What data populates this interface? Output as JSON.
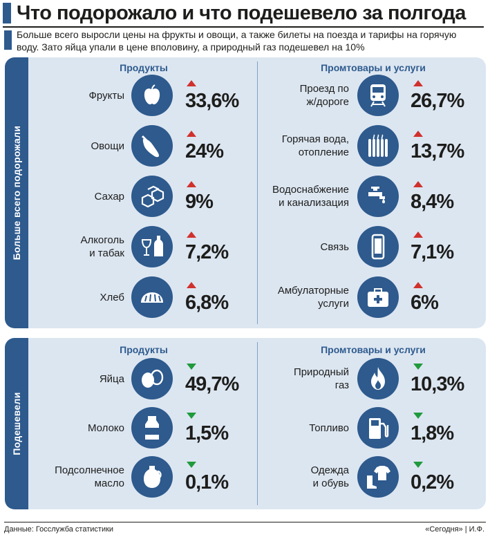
{
  "header": {
    "title": "Что подорожало и что подешевело за полгода",
    "subtitle_line1": "Больше всего выросли цены на фрукты и овощи, а также билеты на поезда и тарифы на горячую",
    "subtitle_line2": "воду. Зато яйца упали в цене вполовину, а природный газ подешевел на 10%"
  },
  "colors": {
    "accent": "#2e5a8d",
    "panel_bg": "#dce6f1",
    "up": "#d0312d",
    "down": "#1f9a3c"
  },
  "chart_data": [
    {
      "type": "table",
      "section": "Больше всего подорожали",
      "columns": [
        {
          "header": "Продукты",
          "items": [
            {
              "label": "Фрукты",
              "value": "33,6%",
              "direction": "up",
              "icon": "apple-icon"
            },
            {
              "label": "Овощи",
              "value": "24%",
              "direction": "up",
              "icon": "eggplant-icon"
            },
            {
              "label": "Сахар",
              "value": "9%",
              "direction": "up",
              "icon": "sugar-cubes-icon"
            },
            {
              "label": "Алкоголь\nи табак",
              "value": "7,2%",
              "direction": "up",
              "icon": "wine-bottle-icon"
            },
            {
              "label": "Хлеб",
              "value": "6,8%",
              "direction": "up",
              "icon": "bread-icon"
            }
          ]
        },
        {
          "header": "Промтовары и услуги",
          "items": [
            {
              "label": "Проезд по\nж/дороге",
              "value": "26,7%",
              "direction": "up",
              "icon": "train-icon"
            },
            {
              "label": "Горячая вода,\nотопление",
              "value": "13,7%",
              "direction": "up",
              "icon": "radiator-icon"
            },
            {
              "label": "Водоснабжение\nи канализация",
              "value": "8,4%",
              "direction": "up",
              "icon": "faucet-icon"
            },
            {
              "label": "Связь",
              "value": "7,1%",
              "direction": "up",
              "icon": "phone-icon"
            },
            {
              "label": "Амбулаторные\nуслуги",
              "value": "6%",
              "direction": "up",
              "icon": "medkit-icon"
            }
          ]
        }
      ]
    },
    {
      "type": "table",
      "section": "Подешевели",
      "columns": [
        {
          "header": "Продукты",
          "items": [
            {
              "label": "Яйца",
              "value": "49,7%",
              "direction": "down",
              "icon": "eggs-icon"
            },
            {
              "label": "Молоко",
              "value": "1,5%",
              "direction": "down",
              "icon": "milk-bottle-icon"
            },
            {
              "label": "Подсолнечное\nмасло",
              "value": "0,1%",
              "direction": "down",
              "icon": "oil-jug-icon"
            }
          ]
        },
        {
          "header": "Промтовары и услуги",
          "items": [
            {
              "label": "Природный\nгаз",
              "value": "10,3%",
              "direction": "down",
              "icon": "flame-icon"
            },
            {
              "label": "Топливо",
              "value": "1,8%",
              "direction": "down",
              "icon": "fuel-pump-icon"
            },
            {
              "label": "Одежда\nи обувь",
              "value": "0,2%",
              "direction": "down",
              "icon": "clothes-icon"
            }
          ]
        }
      ]
    }
  ],
  "footer": {
    "source": "Данные: Госслужба статистики",
    "credit": "«Сегодня» | И.Ф."
  }
}
